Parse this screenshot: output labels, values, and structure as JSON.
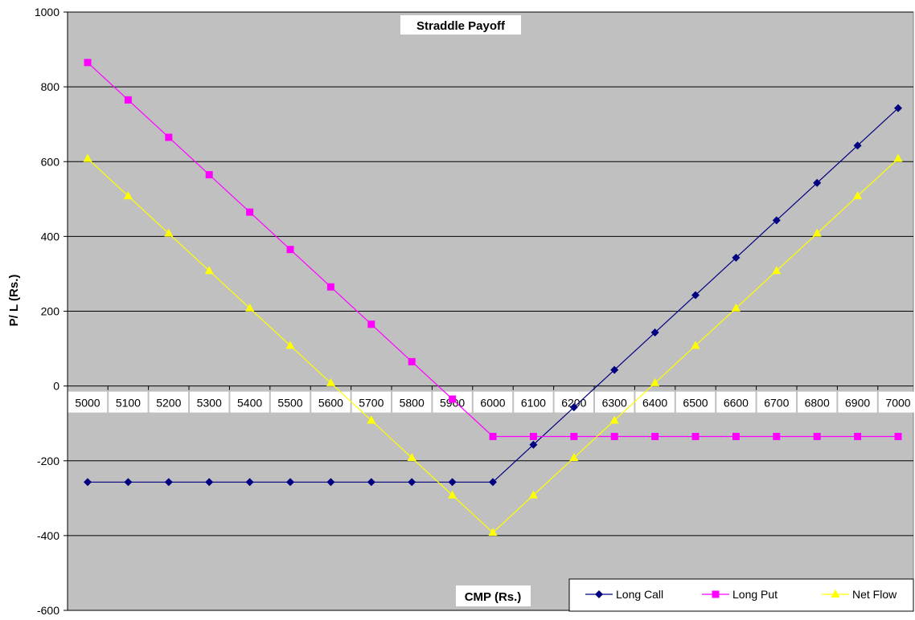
{
  "chart_data": {
    "type": "line",
    "title": "Straddle Payoff",
    "xlabel": "CMP (Rs.)",
    "ylabel": "P/ L (Rs.)",
    "ylim": [
      -600,
      1000
    ],
    "yticks": [
      1000,
      800,
      600,
      400,
      200,
      0,
      -200,
      -400,
      -600
    ],
    "grid": true,
    "legend_position": "bottom-right",
    "plot_background": "#c0c0c0",
    "categories": [
      "5000",
      "5100",
      "5200",
      "5300",
      "5400",
      "5500",
      "5600",
      "5700",
      "5800",
      "5900",
      "6000",
      "6100",
      "6200",
      "6300",
      "6400",
      "6500",
      "6600",
      "6700",
      "6800",
      "6900",
      "7000"
    ],
    "series": [
      {
        "name": "Long Call",
        "color": "#000080",
        "marker": "diamond",
        "values": [
          -257,
          -257,
          -257,
          -257,
          -257,
          -257,
          -257,
          -257,
          -257,
          -257,
          -257,
          -157,
          -57,
          43,
          143,
          243,
          343,
          443,
          543,
          643,
          743
        ]
      },
      {
        "name": "Long Put",
        "color": "#ff00ff",
        "marker": "square",
        "values": [
          865,
          765,
          665,
          565,
          465,
          365,
          265,
          165,
          65,
          -35,
          -135,
          -135,
          -135,
          -135,
          -135,
          -135,
          -135,
          -135,
          -135,
          -135,
          -135
        ]
      },
      {
        "name": "Net Flow",
        "color": "#ffff00",
        "marker": "triangle",
        "values": [
          608,
          508,
          408,
          308,
          208,
          108,
          8,
          -92,
          -192,
          -292,
          -392,
          -292,
          -192,
          -92,
          8,
          108,
          208,
          308,
          408,
          508,
          608
        ]
      }
    ]
  }
}
